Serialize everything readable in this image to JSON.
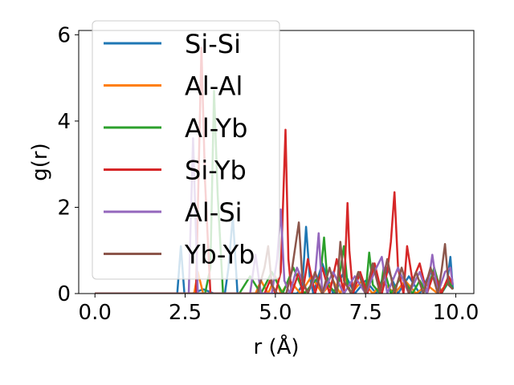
{
  "chart_data": {
    "type": "line",
    "xlabel": "r (Å)",
    "ylabel": "g(r)",
    "xlim": [
      -0.45,
      10.5
    ],
    "ylim": [
      0,
      6.1
    ],
    "xticks": [
      0.0,
      2.5,
      5.0,
      7.5,
      10.0
    ],
    "xtick_labels": [
      "0.0",
      "2.5",
      "5.0",
      "7.5",
      "10.0"
    ],
    "yticks": [
      0,
      2,
      4,
      6
    ],
    "ytick_labels": [
      "0",
      "2",
      "4",
      "6"
    ],
    "legend_position": "upper-left",
    "series": [
      {
        "name": "Si-Si",
        "color": "#1f77b4",
        "x": [
          0.0,
          2.28,
          2.38,
          2.48,
          2.7,
          3.0,
          3.3,
          3.6,
          3.7,
          3.82,
          3.95,
          4.2,
          4.6,
          5.0,
          5.3,
          5.6,
          5.75,
          5.85,
          5.95,
          6.05,
          6.3,
          6.6,
          6.9,
          7.2,
          7.5,
          7.8,
          8.1,
          8.4,
          8.7,
          9.0,
          9.3,
          9.6,
          9.75,
          9.85,
          9.92
        ],
        "y": [
          0.0,
          0.0,
          1.1,
          0.0,
          0.0,
          0.1,
          0.0,
          0.0,
          0.6,
          1.8,
          0.0,
          0.0,
          0.0,
          0.0,
          0.0,
          0.0,
          0.2,
          1.55,
          0.4,
          0.0,
          0.7,
          0.0,
          0.5,
          0.0,
          0.3,
          0.0,
          0.6,
          0.0,
          0.4,
          0.0,
          0.5,
          0.0,
          0.2,
          0.85,
          0.1
        ]
      },
      {
        "name": "Al-Al",
        "color": "#ff7f0e",
        "x": [
          0.0,
          2.5,
          2.75,
          2.85,
          3.0,
          3.4,
          4.0,
          4.3,
          4.45,
          4.6,
          4.8,
          5.0,
          5.15,
          5.4,
          5.7,
          6.0,
          6.3,
          6.6,
          6.8,
          6.95,
          7.1,
          7.4,
          7.7,
          8.0,
          8.3,
          8.6,
          8.9,
          9.2,
          9.5,
          9.8,
          9.92
        ],
        "y": [
          0.0,
          0.0,
          0.0,
          0.5,
          0.0,
          0.0,
          0.0,
          0.0,
          0.0,
          0.3,
          0.0,
          0.4,
          0.0,
          0.3,
          0.0,
          0.4,
          0.0,
          0.3,
          0.0,
          0.35,
          0.0,
          0.3,
          0.0,
          0.25,
          0.0,
          0.3,
          0.0,
          0.2,
          0.0,
          0.25,
          0.1
        ]
      },
      {
        "name": "Al-Yb",
        "color": "#2ca02c",
        "x": [
          0.0,
          2.8,
          3.05,
          3.2,
          3.3,
          3.4,
          3.55,
          3.8,
          4.0,
          4.3,
          4.6,
          4.9,
          5.2,
          5.5,
          5.8,
          6.1,
          6.25,
          6.35,
          6.45,
          6.7,
          6.9,
          7.0,
          7.1,
          7.3,
          7.5,
          7.6,
          7.7,
          7.9,
          8.0,
          8.2,
          8.5,
          8.8,
          9.0,
          9.2,
          9.4,
          9.6,
          9.8,
          9.92
        ],
        "y": [
          0.0,
          0.0,
          0.0,
          0.6,
          4.7,
          2.3,
          0.0,
          0.0,
          0.0,
          0.4,
          0.0,
          0.5,
          0.0,
          0.6,
          0.0,
          0.3,
          0.4,
          1.3,
          0.2,
          0.0,
          1.1,
          0.2,
          0.0,
          0.5,
          0.0,
          0.95,
          0.2,
          0.0,
          0.6,
          0.0,
          0.4,
          0.0,
          0.3,
          0.0,
          0.6,
          0.0,
          0.3,
          0.1
        ]
      },
      {
        "name": "Si-Yb",
        "color": "#d62728",
        "x": [
          0.0,
          2.6,
          2.8,
          2.95,
          3.05,
          3.2,
          3.5,
          4.0,
          4.4,
          4.7,
          4.85,
          5.0,
          5.15,
          5.28,
          5.36,
          5.45,
          5.65,
          5.75,
          5.9,
          6.1,
          6.3,
          6.5,
          6.7,
          6.9,
          7.0,
          7.05,
          7.15,
          7.35,
          7.55,
          7.75,
          7.95,
          8.1,
          8.2,
          8.3,
          8.4,
          8.55,
          8.65,
          8.8,
          9.0,
          9.2,
          9.4,
          9.6,
          9.8,
          9.92
        ],
        "y": [
          0.0,
          0.0,
          0.0,
          5.7,
          2.6,
          0.0,
          0.0,
          0.0,
          0.0,
          0.0,
          0.3,
          0.0,
          0.5,
          3.8,
          0.8,
          0.0,
          0.5,
          0.0,
          0.8,
          0.0,
          0.6,
          0.0,
          0.8,
          0.0,
          2.1,
          1.0,
          0.0,
          0.5,
          0.0,
          0.7,
          0.0,
          0.5,
          1.2,
          2.35,
          0.6,
          0.0,
          1.1,
          0.3,
          0.7,
          0.0,
          0.5,
          0.0,
          0.4,
          0.2
        ]
      },
      {
        "name": "Al-Si",
        "color": "#9467bd",
        "x": [
          0.0,
          2.45,
          2.6,
          2.72,
          2.85,
          3.1,
          3.5,
          4.0,
          4.3,
          4.45,
          4.6,
          4.9,
          5.05,
          5.15,
          5.25,
          5.4,
          5.6,
          5.9,
          6.1,
          6.2,
          6.3,
          6.6,
          6.9,
          7.2,
          7.5,
          7.8,
          7.95,
          8.1,
          8.4,
          8.7,
          9.0,
          9.2,
          9.35,
          9.5,
          9.7,
          9.85,
          9.92
        ],
        "y": [
          0.0,
          0.0,
          0.0,
          3.6,
          0.0,
          0.0,
          0.0,
          0.0,
          0.0,
          0.9,
          0.0,
          0.0,
          0.8,
          1.95,
          0.3,
          0.0,
          0.6,
          0.0,
          0.4,
          1.4,
          0.0,
          0.5,
          0.0,
          0.4,
          0.0,
          0.6,
          0.85,
          0.0,
          0.6,
          0.0,
          0.5,
          0.0,
          0.9,
          0.0,
          0.5,
          0.6,
          0.2
        ]
      },
      {
        "name": "Yb-Yb",
        "color": "#8c564b",
        "x": [
          0.0,
          3.3,
          3.7,
          4.0,
          4.3,
          4.5,
          4.7,
          4.8,
          4.9,
          5.05,
          5.3,
          5.45,
          5.65,
          5.75,
          5.9,
          6.1,
          6.3,
          6.5,
          6.7,
          6.8,
          6.9,
          7.1,
          7.3,
          7.5,
          7.7,
          7.9,
          8.1,
          8.3,
          8.5,
          8.7,
          8.9,
          9.1,
          9.3,
          9.5,
          9.6,
          9.7,
          9.8,
          9.92
        ],
        "y": [
          0.0,
          0.0,
          0.0,
          0.0,
          0.0,
          0.0,
          0.6,
          1.1,
          0.2,
          0.0,
          0.0,
          0.5,
          1.65,
          0.3,
          0.0,
          0.5,
          0.0,
          0.6,
          0.0,
          1.2,
          0.3,
          0.0,
          0.5,
          0.0,
          0.7,
          0.0,
          0.8,
          0.0,
          0.6,
          0.0,
          0.5,
          0.0,
          0.6,
          0.0,
          0.5,
          1.15,
          0.2,
          0.1
        ]
      }
    ]
  }
}
